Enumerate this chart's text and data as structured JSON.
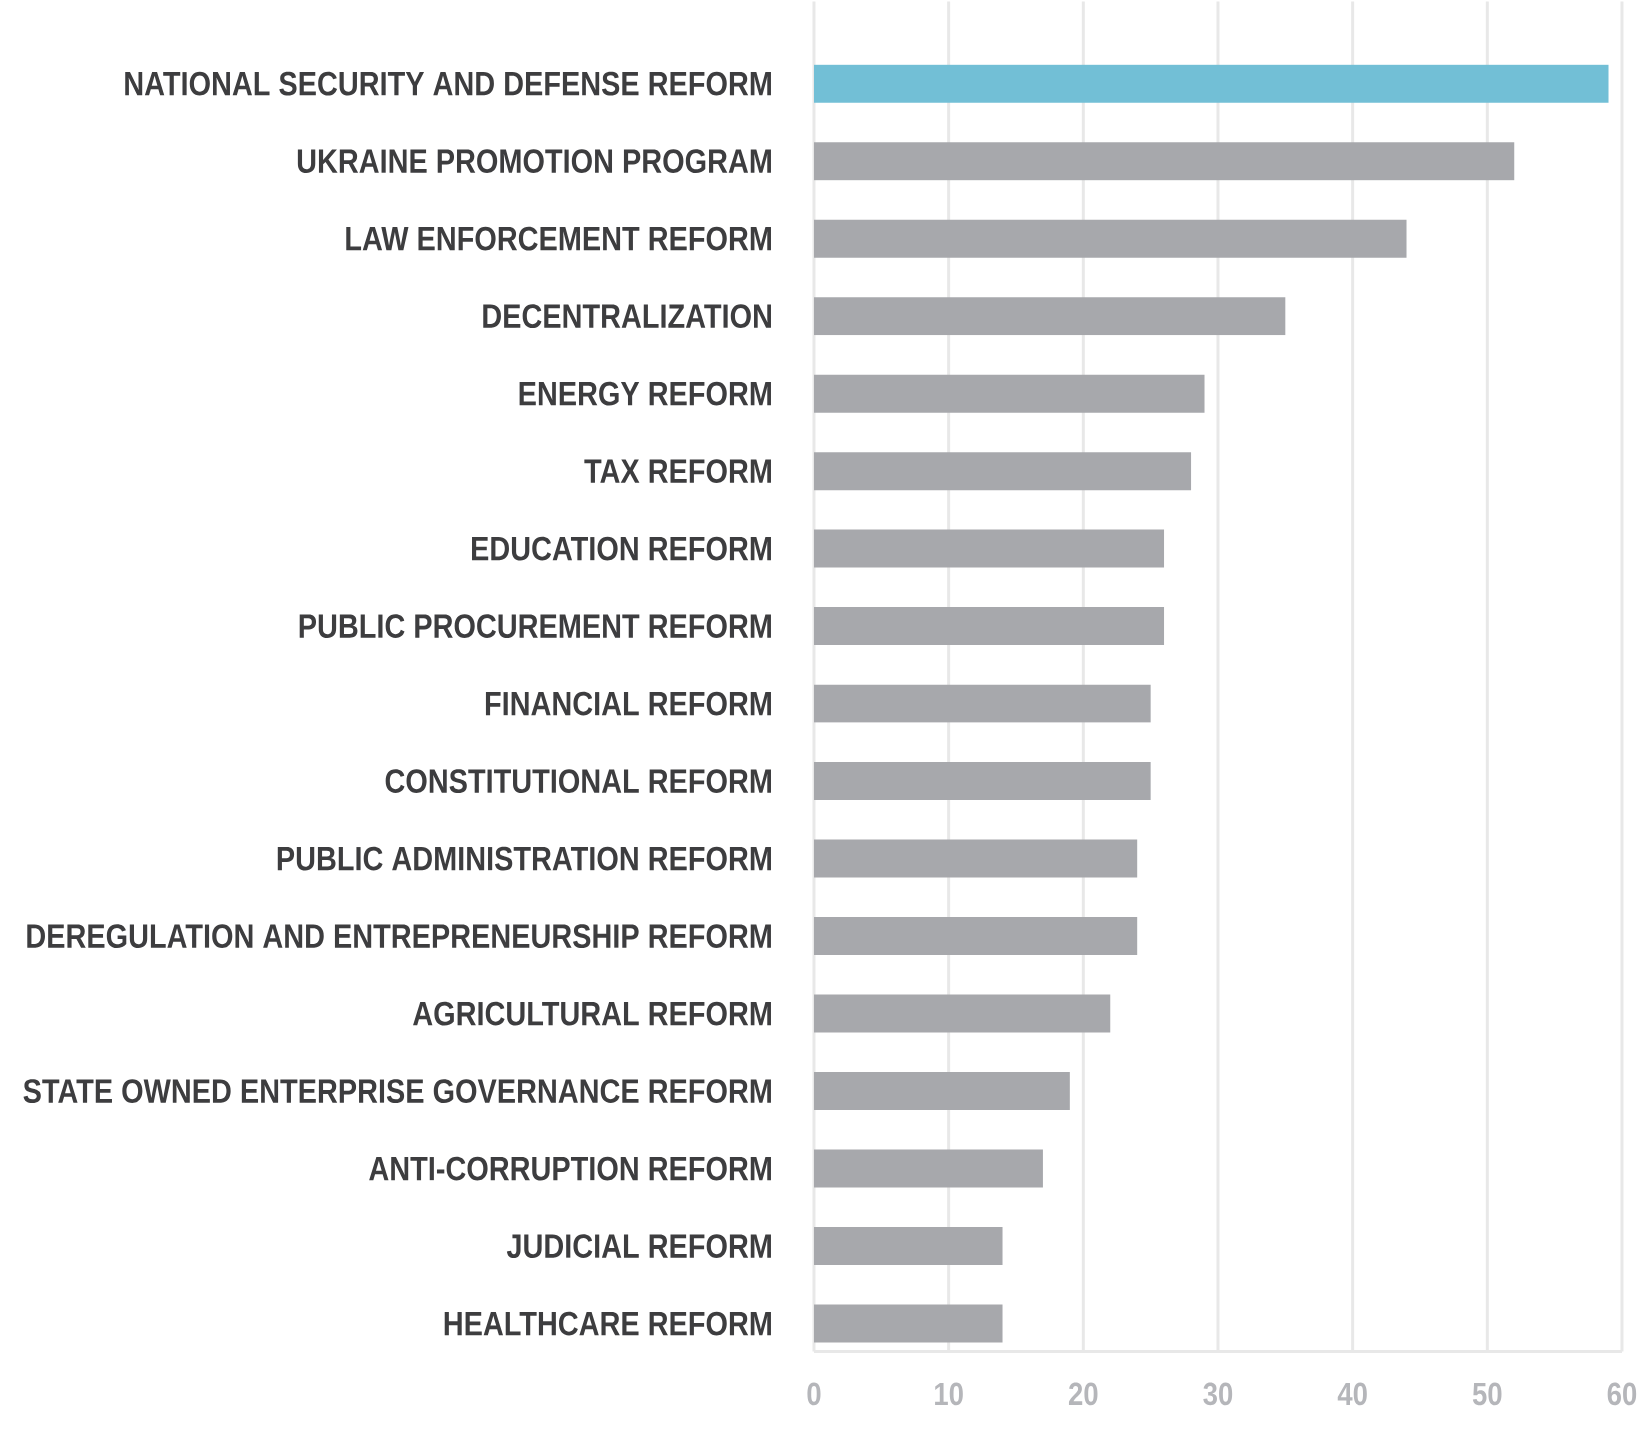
{
  "chart_data": {
    "type": "bar",
    "orientation": "horizontal",
    "categories": [
      "NATIONAL SECURITY AND DEFENSE REFORM",
      "UKRAINE PROMOTION PROGRAM",
      "LAW ENFORCEMENT REFORM",
      "DECENTRALIZATION",
      "ENERGY REFORM",
      "TAX REFORM",
      "EDUCATION REFORM",
      "PUBLIC PROCUREMENT REFORM",
      "FINANCIAL REFORM",
      "CONSTITUTIONAL REFORM",
      "PUBLIC ADMINISTRATION REFORM",
      "DEREGULATION AND ENTREPRENEURSHIP REFORM",
      "AGRICULTURAL REFORM",
      "STATE OWNED ENTERPRISE GOVERNANCE REFORM",
      "ANTI-CORRUPTION REFORM",
      "JUDICIAL REFORM",
      "HEALTHCARE REFORM"
    ],
    "values": [
      59,
      52,
      44,
      35,
      29,
      28,
      26,
      26,
      25,
      25,
      24,
      24,
      22,
      19,
      17,
      14,
      14
    ],
    "colors": [
      "#72bfd6",
      "#a7a8ac",
      "#a7a8ac",
      "#a7a8ac",
      "#a7a8ac",
      "#a7a8ac",
      "#a7a8ac",
      "#a7a8ac",
      "#a7a8ac",
      "#a7a8ac",
      "#a7a8ac",
      "#a7a8ac",
      "#a7a8ac",
      "#a7a8ac",
      "#a7a8ac",
      "#a7a8ac",
      "#a7a8ac"
    ],
    "xlim": [
      0,
      60
    ],
    "xticks": [
      0,
      10,
      20,
      30,
      40,
      50,
      60
    ],
    "grid": "x"
  }
}
